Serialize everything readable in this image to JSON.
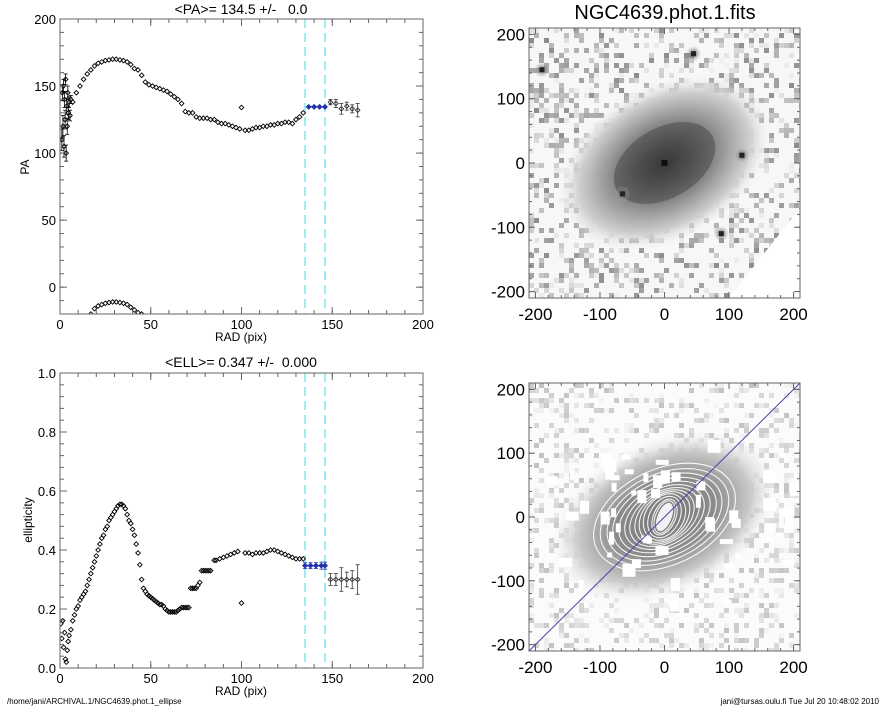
{
  "chart_data": [
    {
      "type": "scatter",
      "id": "pa",
      "title": "<PA>= 134.5 +/-   0.0",
      "xlabel": "RAD (pix)",
      "ylabel": "PA",
      "xlim": [
        0,
        200
      ],
      "ylim": [
        -20,
        200
      ],
      "xticks": [
        0,
        50,
        100,
        150,
        200
      ],
      "yticks": [
        0,
        50,
        100,
        150,
        200
      ],
      "grid": false,
      "vlines": [
        135,
        146
      ],
      "vline_color": "#7fe7ef",
      "mean_value": 134.5,
      "mean_error": 0.0,
      "series": [
        {
          "name": "inner-noisy",
          "color": "#000000",
          "points": [
            [
              1,
              110
            ],
            [
              1.3,
              145
            ],
            [
              1.6,
              120
            ],
            [
              1.9,
              150
            ],
            [
              2.2,
              105
            ],
            [
              2.5,
              140
            ],
            [
              2.8,
              125
            ],
            [
              3.1,
              155
            ],
            [
              3.4,
              100
            ],
            [
              3.7,
              135
            ],
            [
              4,
              120
            ],
            [
              4.3,
              145
            ],
            [
              4.6,
              130
            ],
            [
              5,
              138
            ],
            [
              5.5,
              128
            ],
            [
              6,
              140
            ]
          ],
          "errors": [
            8,
            6,
            8,
            5,
            8,
            6,
            7,
            4,
            6,
            6,
            6,
            5,
            5,
            4,
            4,
            3
          ]
        },
        {
          "name": "pa-main",
          "color": "#000000",
          "points": [
            [
              7,
              138
            ],
            [
              9,
              145
            ],
            [
              11,
              150
            ],
            [
              13,
              155
            ],
            [
              15,
              159
            ],
            [
              17,
              162
            ],
            [
              19,
              165
            ],
            [
              21,
              167
            ],
            [
              23,
              168
            ],
            [
              25,
              169
            ],
            [
              27,
              169.5
            ],
            [
              29,
              170
            ],
            [
              31,
              170
            ],
            [
              33,
              169.5
            ],
            [
              35,
              169
            ],
            [
              37,
              168
            ],
            [
              39,
              166
            ],
            [
              41,
              163
            ],
            [
              43,
              162
            ],
            [
              45,
              158
            ],
            [
              47,
              153
            ],
            [
              49,
              151
            ],
            [
              51,
              150
            ],
            [
              53,
              149
            ],
            [
              55,
              148
            ],
            [
              57,
              147
            ],
            [
              59,
              146
            ],
            [
              61,
              144
            ],
            [
              63,
              142
            ],
            [
              65,
              140
            ],
            [
              67,
              137
            ],
            [
              69,
              131
            ],
            [
              71,
              130
            ],
            [
              73,
              130
            ],
            [
              75,
              127
            ],
            [
              77,
              126
            ],
            [
              79,
              126
            ],
            [
              81,
              126
            ],
            [
              83,
              125
            ],
            [
              85,
              125
            ],
            [
              87,
              123
            ],
            [
              89,
              122
            ],
            [
              91,
              122
            ],
            [
              93,
              121
            ],
            [
              95,
              120
            ],
            [
              97,
              119
            ],
            [
              99,
              118
            ],
            [
              100,
              134
            ],
            [
              102,
              117
            ],
            [
              104,
              117
            ],
            [
              106,
              118
            ],
            [
              108,
              119
            ],
            [
              110,
              119
            ],
            [
              112,
              120
            ],
            [
              114,
              120
            ],
            [
              116,
              121
            ],
            [
              118,
              121
            ],
            [
              120,
              122
            ],
            [
              122,
              122
            ],
            [
              124,
              123
            ],
            [
              126,
              123
            ],
            [
              128,
              122
            ],
            [
              130,
              125
            ],
            [
              132,
              127
            ],
            [
              134,
              130
            ]
          ]
        },
        {
          "name": "pa-wrapped",
          "color": "#000000",
          "points": [
            [
              17,
              -20
            ],
            [
              19,
              -16
            ],
            [
              21,
              -14
            ],
            [
              23,
              -13
            ],
            [
              25,
              -12
            ],
            [
              27,
              -11.5
            ],
            [
              29,
              -11
            ],
            [
              31,
              -11
            ],
            [
              33,
              -11.5
            ],
            [
              35,
              -12
            ],
            [
              37,
              -13
            ],
            [
              39,
              -15
            ],
            [
              41,
              -17
            ],
            [
              43,
              -19
            ],
            [
              45,
              -20
            ]
          ]
        },
        {
          "name": "pa-fit-range",
          "color": "#2233aa",
          "points": [
            [
              137,
              134.5
            ],
            [
              140,
              134.5
            ],
            [
              143,
              134.5
            ],
            [
              146,
              134.5
            ]
          ]
        },
        {
          "name": "pa-outer",
          "color": "#333333",
          "points": [
            [
              149,
              138
            ],
            [
              152,
              137
            ],
            [
              155,
              133
            ],
            [
              158,
              135
            ],
            [
              161,
              133
            ],
            [
              164,
              132
            ]
          ],
          "errors": [
            2,
            3,
            4,
            3,
            3,
            5
          ]
        }
      ]
    },
    {
      "type": "scatter",
      "id": "ell",
      "title": "<ELL>= 0.347 +/-  0.000",
      "xlabel": "RAD (pix)",
      "ylabel": "ellipticity",
      "xlim": [
        0,
        200
      ],
      "ylim": [
        0.0,
        1.0
      ],
      "xticks": [
        0,
        50,
        100,
        150,
        200
      ],
      "yticks": [
        0.0,
        0.2,
        0.4,
        0.6,
        0.8,
        1.0
      ],
      "ytick_labels": [
        "0.0",
        "0.2",
        "0.4",
        "0.6",
        "0.8",
        "1.0"
      ],
      "grid": false,
      "vlines": [
        135,
        146
      ],
      "vline_color": "#7fe7ef",
      "mean_value": 0.347,
      "mean_error": 0.0,
      "series": [
        {
          "name": "ell-main",
          "color": "#000000",
          "points": [
            [
              0.5,
              0.15
            ],
            [
              1,
              0.1
            ],
            [
              1.5,
              0.16
            ],
            [
              2,
              0.07
            ],
            [
              2.5,
              0.12
            ],
            [
              3,
              0.03
            ],
            [
              3.5,
              0.02
            ],
            [
              4,
              0.06
            ],
            [
              4.5,
              0.09
            ],
            [
              5,
              0.11
            ],
            [
              6,
              0.13
            ],
            [
              7,
              0.16
            ],
            [
              8,
              0.18
            ],
            [
              9,
              0.2
            ],
            [
              10,
              0.21
            ],
            [
              11,
              0.23
            ],
            [
              12,
              0.24
            ],
            [
              13,
              0.25
            ],
            [
              14,
              0.26
            ],
            [
              15,
              0.28
            ],
            [
              16,
              0.3
            ],
            [
              17,
              0.32
            ],
            [
              18,
              0.34
            ],
            [
              19,
              0.36
            ],
            [
              20,
              0.38
            ],
            [
              21,
              0.4
            ],
            [
              22,
              0.42
            ],
            [
              23,
              0.44
            ],
            [
              24,
              0.45
            ],
            [
              25,
              0.47
            ],
            [
              26,
              0.48
            ],
            [
              27,
              0.5
            ],
            [
              28,
              0.51
            ],
            [
              29,
              0.52
            ],
            [
              30,
              0.53
            ],
            [
              31,
              0.54
            ],
            [
              32,
              0.55
            ],
            [
              33,
              0.555
            ],
            [
              34,
              0.555
            ],
            [
              35,
              0.55
            ],
            [
              36,
              0.54
            ],
            [
              37,
              0.52
            ],
            [
              38,
              0.5
            ],
            [
              39,
              0.49
            ],
            [
              40,
              0.47
            ],
            [
              41,
              0.45
            ],
            [
              42,
              0.42
            ],
            [
              43,
              0.39
            ],
            [
              44,
              0.35
            ],
            [
              45,
              0.3
            ],
            [
              46,
              0.27
            ],
            [
              47,
              0.26
            ],
            [
              48,
              0.25
            ],
            [
              49,
              0.245
            ],
            [
              50,
              0.24
            ],
            [
              51,
              0.235
            ],
            [
              52,
              0.23
            ],
            [
              53,
              0.225
            ],
            [
              54,
              0.22
            ],
            [
              55,
              0.215
            ],
            [
              56,
              0.215
            ],
            [
              57,
              0.21
            ],
            [
              58,
              0.2
            ],
            [
              59,
              0.195
            ],
            [
              60,
              0.19
            ],
            [
              61,
              0.19
            ],
            [
              62,
              0.19
            ],
            [
              63,
              0.19
            ],
            [
              64,
              0.19
            ],
            [
              65,
              0.195
            ],
            [
              66,
              0.2
            ],
            [
              67,
              0.205
            ],
            [
              68,
              0.205
            ],
            [
              69,
              0.205
            ],
            [
              70,
              0.205
            ],
            [
              71,
              0.205
            ],
            [
              72,
              0.27
            ],
            [
              73,
              0.27
            ],
            [
              74,
              0.27
            ],
            [
              75,
              0.27
            ],
            [
              76,
              0.28
            ],
            [
              77,
              0.29
            ],
            [
              78,
              0.33
            ],
            [
              79,
              0.33
            ],
            [
              80,
              0.33
            ],
            [
              81,
              0.33
            ],
            [
              82,
              0.33
            ],
            [
              83,
              0.33
            ],
            [
              85,
              0.365
            ],
            [
              86,
              0.365
            ],
            [
              88,
              0.37
            ],
            [
              90,
              0.375
            ],
            [
              92,
              0.38
            ],
            [
              94,
              0.385
            ],
            [
              96,
              0.39
            ],
            [
              98,
              0.395
            ],
            [
              100,
              0.22
            ],
            [
              102,
              0.39
            ],
            [
              104,
              0.39
            ],
            [
              106,
              0.385
            ],
            [
              108,
              0.39
            ],
            [
              110,
              0.39
            ],
            [
              112,
              0.39
            ],
            [
              114,
              0.395
            ],
            [
              116,
              0.4
            ],
            [
              118,
              0.4
            ],
            [
              120,
              0.395
            ],
            [
              122,
              0.39
            ],
            [
              124,
              0.385
            ],
            [
              126,
              0.38
            ],
            [
              128,
              0.375
            ],
            [
              130,
              0.37
            ],
            [
              132,
              0.37
            ],
            [
              134,
              0.37
            ]
          ]
        },
        {
          "name": "ell-fit-range",
          "color": "#2233aa",
          "points": [
            [
              135,
              0.347
            ],
            [
              138,
              0.347
            ],
            [
              141,
              0.347
            ],
            [
              144,
              0.347
            ],
            [
              146,
              0.347
            ]
          ],
          "errors": [
            0.01,
            0.01,
            0.01,
            0.012,
            0.012
          ]
        },
        {
          "name": "ell-outer",
          "color": "#333333",
          "points": [
            [
              149,
              0.3
            ],
            [
              152,
              0.3
            ],
            [
              155,
              0.3
            ],
            [
              158,
              0.3
            ],
            [
              161,
              0.3
            ],
            [
              164,
              0.3
            ]
          ],
          "errors": [
            0.02,
            0.02,
            0.04,
            0.025,
            0.03,
            0.05
          ]
        }
      ]
    },
    {
      "type": "heatmap",
      "id": "image",
      "title": "NGC4639.phot.1.fits",
      "xlim": [
        -210,
        210
      ],
      "ylim": [
        -210,
        210
      ],
      "xticks": [
        -200,
        -100,
        0,
        100,
        200
      ],
      "yticks": [
        -200,
        -100,
        0,
        100,
        200
      ],
      "colormap": "gray-inverted",
      "galaxy": {
        "center": [
          0,
          0
        ],
        "pa_deg": 134.5,
        "ellipticity": 0.347
      },
      "bright_sources": [
        [
          45,
          170
        ],
        [
          -65,
          -48
        ],
        [
          120,
          12
        ],
        [
          88,
          -110
        ],
        [
          -190,
          145
        ]
      ]
    },
    {
      "type": "heatmap",
      "id": "contour-image",
      "title": "",
      "xlim": [
        -210,
        210
      ],
      "ylim": [
        -210,
        210
      ],
      "xticks": [
        -200,
        -100,
        0,
        100,
        200
      ],
      "yticks": [
        -200,
        -100,
        0,
        100,
        200
      ],
      "colormap": "gray-inverted",
      "line": {
        "from": [
          -210,
          -210
        ],
        "to": [
          210,
          210
        ],
        "color": "#4444aa"
      },
      "contour_color": "#ffffff"
    }
  ],
  "footer": {
    "path": "/home/jani/ARCHIVAL.1/NGC4639.phot.1_ellipse",
    "signature": "jani@tursas.oulu.fi  Tue Jul 20 10:48:02 2010"
  }
}
